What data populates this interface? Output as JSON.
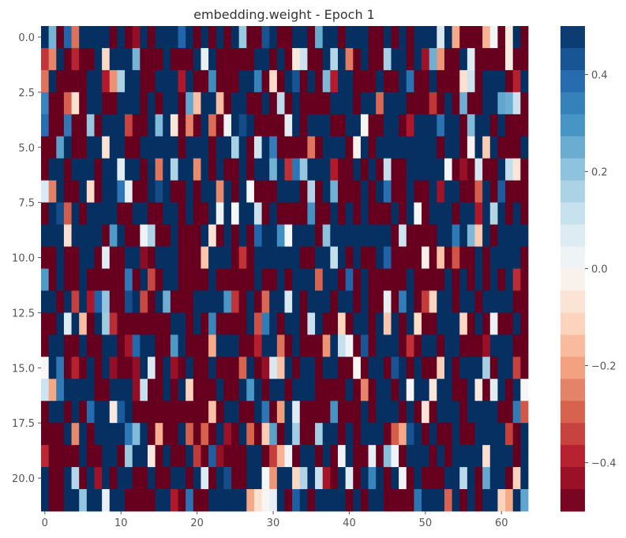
{
  "chart_data": {
    "type": "heatmap",
    "title": "embedding.weight - Epoch 1",
    "xlabel": "",
    "ylabel": "",
    "n_rows": 22,
    "n_cols": 64,
    "x_ticks": [
      0,
      10,
      20,
      30,
      40,
      50,
      60
    ],
    "x_tick_labels": [
      "0",
      "10",
      "20",
      "30",
      "40",
      "50",
      "60"
    ],
    "y_ticks": [
      0,
      2.5,
      5,
      7.5,
      10,
      12.5,
      15,
      17.5,
      20
    ],
    "y_tick_labels": [
      "0.0",
      "2.5",
      "5.0",
      "7.5",
      "10.0",
      "12.5",
      "15.0",
      "17.5",
      "20.0"
    ],
    "colorbar": {
      "colormap": "RdBu",
      "vmin": -0.5,
      "vmax": 0.5,
      "ticks": [
        0.4,
        0.2,
        0.0,
        -0.2,
        -0.4
      ],
      "tick_labels": [
        "0.4",
        "0.2",
        "0.0",
        "−0.2",
        "−0.4"
      ]
    },
    "colors": {
      "low": "#67001f",
      "high": "#053061",
      "mid": "#f7f7f7"
    },
    "grid": false,
    "values": []
  }
}
